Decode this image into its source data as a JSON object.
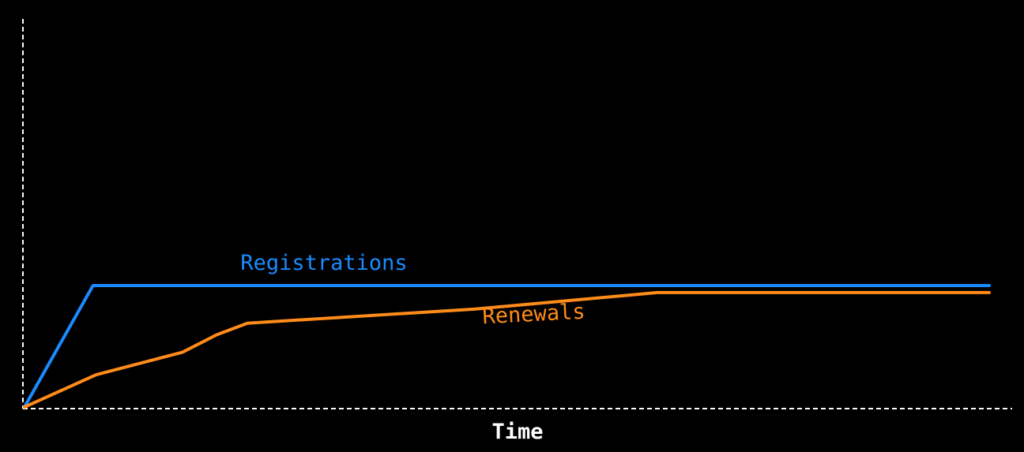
{
  "chart_data": {
    "type": "line",
    "title": "",
    "xlabel": "Time",
    "ylabel": "",
    "xlim": [
      0,
      100
    ],
    "ylim": [
      0,
      100
    ],
    "grid": false,
    "legend": "none",
    "series": [
      {
        "name": "Registrations",
        "color": "#1a8cff",
        "x": [
          0,
          7.1,
          100
        ],
        "y": [
          0,
          100,
          100
        ]
      },
      {
        "name": "Renewals",
        "color": "#ff8c1a",
        "x": [
          0,
          7.4,
          16.4,
          19.9,
          23.1,
          46.6,
          65.6,
          100
        ],
        "y": [
          0,
          26.5,
          45.2,
          59.4,
          69.0,
          80.6,
          94.2,
          94.2
        ]
      }
    ],
    "axis_color": "#ffffff",
    "background": "#000000"
  }
}
